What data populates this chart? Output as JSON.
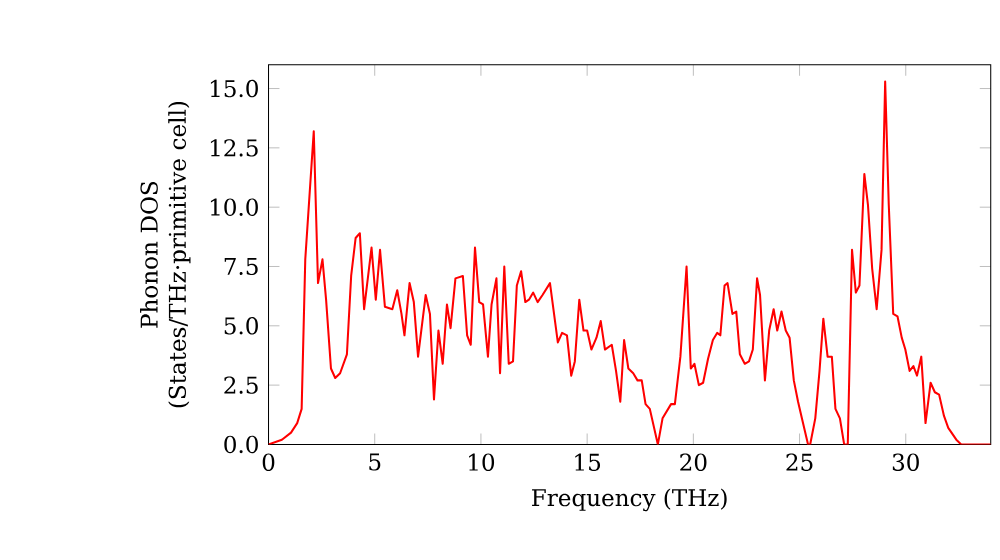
{
  "chart_data": {
    "type": "line",
    "xlabel": "Frequency (THz)",
    "ylabel": "Phonon DOS\n(States/THz·primitive cell)",
    "xlim": [
      0,
      34
    ],
    "ylim": [
      0,
      16
    ],
    "xticks": [
      0,
      5,
      10,
      15,
      20,
      25,
      30
    ],
    "yticks": [
      {
        "value": 0,
        "label": "0.0"
      },
      {
        "value": 2.5,
        "label": "2.5"
      },
      {
        "value": 5,
        "label": "5.0"
      },
      {
        "value": 7.5,
        "label": "7.5"
      },
      {
        "value": 10,
        "label": "10.0"
      },
      {
        "value": 12.5,
        "label": "12.5"
      },
      {
        "value": 15,
        "label": "15.0"
      }
    ],
    "grid": false,
    "marker": "none",
    "line_style": "solid",
    "series": [
      {
        "color": "#ff0000",
        "x": [
          0,
          0.63,
          1.06,
          1.35,
          1.56,
          1.73,
          2.13,
          2.33,
          2.54,
          2.71,
          2.94,
          3.14,
          3.37,
          3.69,
          3.89,
          4.1,
          4.3,
          4.5,
          4.85,
          5.05,
          5.25,
          5.48,
          5.83,
          6.06,
          6.26,
          6.4,
          6.64,
          6.84,
          7.04,
          7.4,
          7.6,
          7.79,
          8.0,
          8.2,
          8.4,
          8.57,
          8.8,
          9.15,
          9.35,
          9.52,
          9.72,
          9.92,
          10.1,
          10.33,
          10.5,
          10.73,
          10.9,
          11.1,
          11.31,
          11.51,
          11.69,
          11.89,
          12.09,
          12.26,
          12.46,
          12.67,
          12.9,
          13.25,
          13.62,
          13.82,
          14.05,
          14.25,
          14.42,
          14.63,
          14.83,
          15.0,
          15.2,
          15.44,
          15.64,
          15.84,
          16.16,
          16.36,
          16.56,
          16.74,
          16.94,
          17.17,
          17.37,
          17.57,
          17.75,
          17.95,
          18.33,
          18.55,
          18.95,
          19.13,
          19.39,
          19.68,
          19.88,
          20.05,
          20.26,
          20.46,
          20.69,
          20.92,
          21.12,
          21.27,
          21.47,
          21.61,
          21.84,
          22.02,
          22.19,
          22.42,
          22.62,
          22.8,
          23.0,
          23.14,
          23.37,
          23.57,
          23.78,
          23.95,
          24.15,
          24.35,
          24.53,
          24.73,
          24.93,
          25.11,
          25.4,
          25.5,
          25.74,
          25.94,
          26.12,
          26.32,
          26.52,
          26.69,
          26.9,
          27.1,
          27.27,
          27.47,
          27.65,
          27.82,
          28.05,
          28.22,
          28.42,
          28.63,
          28.86,
          29.03,
          29.2,
          29.41,
          29.61,
          29.81,
          29.98,
          30.18,
          30.36,
          30.53,
          30.73,
          30.93,
          31.17,
          31.37,
          31.57,
          31.8,
          32.0,
          32.38,
          32.61,
          34.0
        ],
        "values": [
          0,
          0.2,
          0.5,
          0.9,
          1.5,
          7.8,
          13.2,
          6.8,
          7.8,
          6.1,
          3.2,
          2.8,
          3.0,
          3.8,
          7.1,
          8.7,
          8.9,
          5.7,
          8.3,
          6.1,
          8.2,
          5.8,
          5.7,
          6.5,
          5.5,
          4.6,
          6.8,
          6.0,
          3.7,
          6.3,
          5.5,
          1.9,
          4.8,
          3.4,
          5.9,
          4.9,
          7.0,
          7.1,
          4.6,
          4.2,
          8.3,
          6.0,
          5.9,
          3.7,
          5.9,
          7.0,
          3.0,
          7.5,
          3.4,
          3.5,
          6.7,
          7.3,
          6.0,
          6.1,
          6.4,
          6.0,
          6.3,
          6.8,
          4.3,
          4.7,
          4.6,
          2.9,
          3.5,
          6.1,
          4.8,
          4.8,
          4.0,
          4.5,
          5.2,
          4.0,
          4.2,
          3.1,
          1.8,
          4.4,
          3.2,
          3.0,
          2.7,
          2.7,
          1.7,
          1.5,
          0.0,
          1.1,
          1.7,
          1.7,
          3.7,
          7.5,
          3.2,
          3.4,
          2.5,
          2.6,
          3.6,
          4.4,
          4.7,
          4.6,
          6.7,
          6.8,
          5.5,
          5.6,
          3.8,
          3.4,
          3.5,
          4.0,
          7.0,
          6.3,
          2.7,
          4.8,
          5.7,
          4.8,
          5.6,
          4.8,
          4.5,
          2.7,
          1.8,
          1.1,
          0.0,
          0.0,
          1.1,
          3.1,
          5.3,
          3.7,
          3.7,
          1.5,
          1.1,
          0,
          0,
          8.2,
          6.4,
          6.7,
          11.4,
          10.1,
          7.4,
          5.7,
          8.2,
          15.3,
          10.1,
          5.5,
          5.4,
          4.5,
          4.0,
          3.1,
          3.3,
          2.9,
          3.7,
          0.9,
          2.6,
          2.2,
          2.1,
          1.2,
          0.7,
          0.2,
          0,
          0
        ]
      }
    ]
  }
}
